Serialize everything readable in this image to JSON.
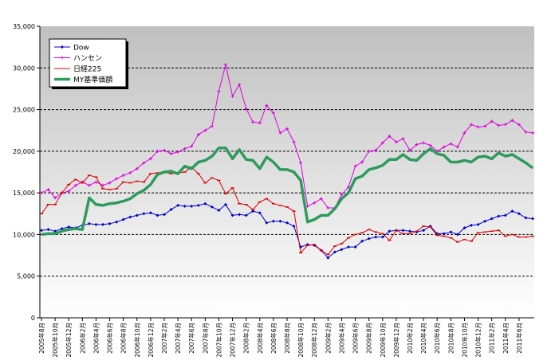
{
  "chart_data": {
    "type": "line",
    "ylim": [
      0,
      35000
    ],
    "yticks": [
      0,
      5000,
      10000,
      15000,
      20000,
      25000,
      30000,
      35000
    ],
    "ytick_labels": [
      "0",
      "5,000",
      "10,000",
      "15,000",
      "20,000",
      "25,000",
      "30,000",
      "35,000"
    ],
    "x_labels": [
      "2005年8月",
      "2005年10月",
      "2005年12月",
      "2006年2月",
      "2006年4月",
      "2006年6月",
      "2006年8月",
      "2006年10月",
      "2006年12月",
      "2007年2月",
      "2007年4月",
      "2007年6月",
      "2007年8月",
      "2007年10月",
      "2007年12月",
      "2008年2月",
      "2008年4月",
      "2008年6月",
      "2008年8月",
      "2008年10月",
      "2008年12月",
      "2009年2月",
      "2009年4月",
      "2009年6月",
      "2009年8月",
      "2009年10月",
      "2009年12月",
      "2010年2月",
      "2010年4月",
      "2010年6月",
      "2010年8月",
      "2010年10月",
      "2010年12月",
      "2011年2月",
      "2011年4月",
      "2011年6月"
    ],
    "grid": true,
    "legend_position": "top-left",
    "series": [
      {
        "name": "Dow",
        "color": "#0000cc",
        "values": [
          10500,
          10600,
          10400,
          10700,
          10900,
          10800,
          11100,
          11300,
          11200,
          11200,
          11300,
          11500,
          11800,
          12100,
          12300,
          12500,
          12600,
          12300,
          12400,
          13000,
          13500,
          13400,
          13400,
          13500,
          13700,
          13300,
          12900,
          13600,
          12300,
          12400,
          12300,
          12800,
          12600,
          11400,
          11600,
          11600,
          11400,
          11000,
          8500,
          8800,
          8700,
          8100,
          7200,
          7900,
          8200,
          8500,
          8500,
          9200,
          9500,
          9700,
          9700,
          10400,
          10500,
          10500,
          10400,
          10300,
          10500,
          11000,
          10100,
          10100,
          10300,
          10000,
          10800,
          11100,
          11200,
          11600,
          11900,
          12200,
          12300,
          12800,
          12500,
          12000,
          11900
        ]
      },
      {
        "name": "ハンセン",
        "color": "#dd00dd",
        "values": [
          15000,
          15400,
          14400,
          15000,
          15200,
          15900,
          16300,
          15900,
          16300,
          15900,
          16200,
          16700,
          17100,
          17400,
          17900,
          18600,
          19100,
          20000,
          20100,
          19700,
          19900,
          20300,
          20600,
          22000,
          22500,
          23000,
          27200,
          30400,
          26600,
          28000,
          25100,
          23500,
          23400,
          25500,
          24600,
          22200,
          22700,
          21100,
          18600,
          13400,
          13800,
          14300,
          13200,
          13200,
          14800,
          15700,
          18200,
          18700,
          20000,
          20100,
          21000,
          21800,
          21100,
          21500,
          20100,
          20800,
          21000,
          20700,
          20000,
          20500,
          20900,
          20500,
          22200,
          23200,
          22900,
          23000,
          23600,
          23100,
          23200,
          23700,
          23200,
          22300,
          22200
        ]
      },
      {
        "name": "日経225",
        "color": "#dd0000",
        "values": [
          12500,
          13600,
          13600,
          15000,
          16000,
          16600,
          16200,
          17100,
          16900,
          15500,
          15400,
          15500,
          16300,
          16200,
          16400,
          16300,
          17300,
          17400,
          17500,
          17300,
          17400,
          17500,
          18100,
          17300,
          16200,
          16800,
          16500,
          14900,
          15600,
          13700,
          13600,
          13000,
          13900,
          14300,
          13700,
          13500,
          13300,
          12800,
          7800,
          8700,
          8800,
          8100,
          7600,
          8600,
          8900,
          9600,
          10000,
          10200,
          10600,
          10300,
          10100,
          9300,
          10500,
          10100,
          10100,
          10400,
          11000,
          10900,
          9900,
          9800,
          9600,
          9100,
          9400,
          9200,
          10200,
          10300,
          10400,
          10500,
          9800,
          10000,
          9700,
          9700,
          9800
        ]
      },
      {
        "name": "MY基準価額",
        "color": "#2e9b5c",
        "values": [
          10000,
          10100,
          10100,
          10400,
          10600,
          10700,
          10600,
          14400,
          13600,
          13500,
          13700,
          13800,
          14000,
          14300,
          14900,
          15300,
          16000,
          17200,
          17500,
          17600,
          17300,
          18200,
          17900,
          18700,
          18900,
          19400,
          20400,
          20400,
          19100,
          20200,
          19000,
          18900,
          17900,
          19300,
          18700,
          17800,
          17800,
          17500,
          16500,
          11500,
          11800,
          12300,
          12300,
          13100,
          14300,
          15000,
          16700,
          17000,
          17800,
          18000,
          18300,
          19000,
          19000,
          19600,
          19000,
          18900,
          19700,
          20300,
          19700,
          19500,
          18700,
          18700,
          18900,
          18700,
          19300,
          19400,
          19100,
          19800,
          19400,
          19600,
          19100,
          18600,
          18000
        ]
      }
    ]
  }
}
